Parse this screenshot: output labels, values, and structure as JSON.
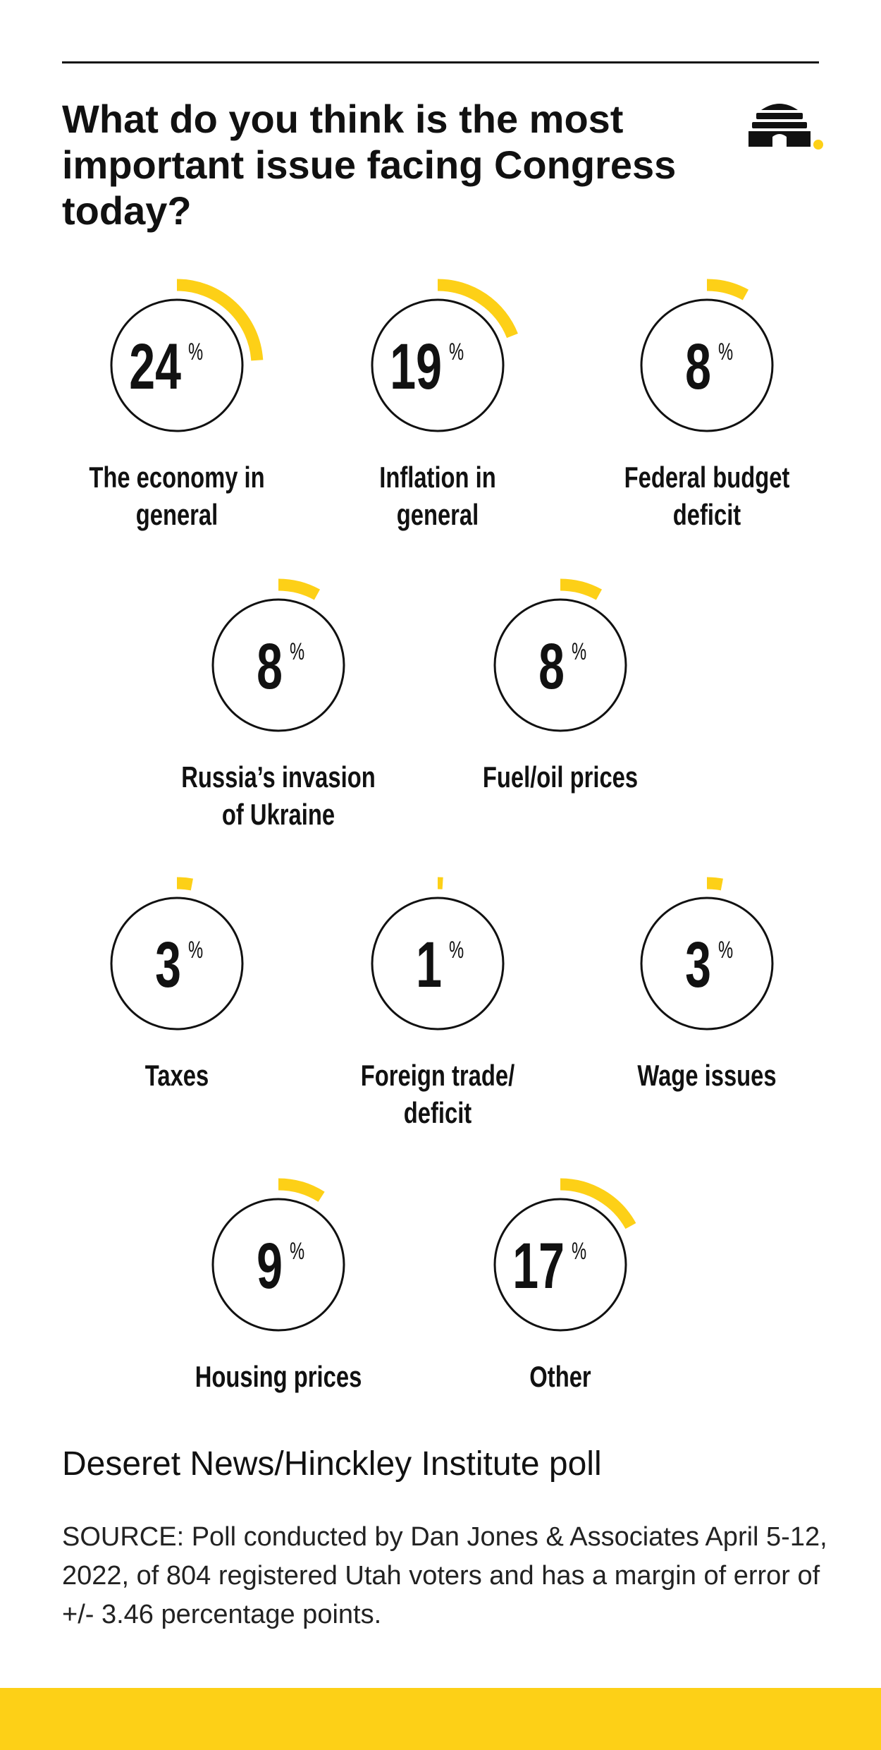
{
  "colors": {
    "accent": "#fdd017",
    "ink": "#111111"
  },
  "header": {
    "title": "What do you think is the most important issue facing Congress today?",
    "logo_icon": "beehive-icon"
  },
  "chart_data": {
    "type": "radial-progress",
    "unit": "%",
    "categories": [
      "The economy in general",
      "Inflation in general",
      "Federal budget deficit",
      "Russia’s invasion of Ukraine",
      "Fuel/oil prices",
      "Taxes",
      "Foreign trade/ deficit",
      "Wage issues",
      "Housing prices",
      "Other"
    ],
    "values": [
      24,
      19,
      8,
      8,
      8,
      3,
      1,
      3,
      9,
      17
    ],
    "label_lines": [
      [
        "The economy in",
        "general"
      ],
      [
        "Inflation in",
        "general"
      ],
      [
        "Federal budget",
        "deficit"
      ],
      [
        "Russia’s invasion",
        "of Ukraine"
      ],
      [
        "Fuel/oil prices"
      ],
      [
        "Taxes"
      ],
      [
        "Foreign trade/",
        "deficit"
      ],
      [
        "Wage issues"
      ],
      [
        "Housing prices"
      ],
      [
        "Other"
      ]
    ]
  },
  "footer": {
    "poll_name": "Deseret News/Hinckley Institute poll",
    "source": "SOURCE: Poll conducted by Dan Jones & Associates April 5-12, 2022, of 804 registered Utah voters and has a margin of error of +/- 3.46 percentage points."
  }
}
